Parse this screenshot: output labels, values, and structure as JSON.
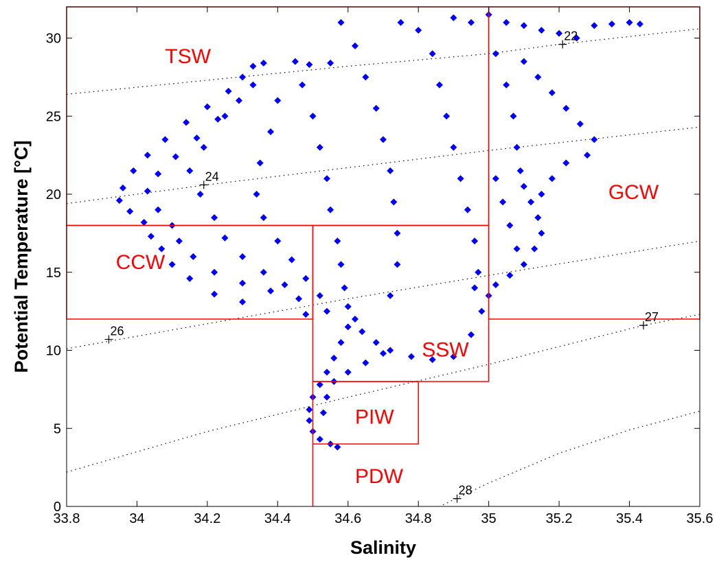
{
  "chart_data": {
    "type": "scatter",
    "title": "",
    "xlabel": "Salinity",
    "ylabel": "Potential Temperature [°C]",
    "xlim": [
      33.8,
      35.6
    ],
    "ylim": [
      0,
      32
    ],
    "xticks": [
      "33.8",
      "34",
      "34.2",
      "34.4",
      "34.6",
      "34.8",
      "35",
      "35.2",
      "35.4",
      "35.6"
    ],
    "yticks": [
      "0",
      "5",
      "10",
      "15",
      "20",
      "25",
      "30"
    ],
    "grid": false,
    "point_color": "#0000ff",
    "box_color": "#ff0000",
    "series": [
      {
        "points": [
          [
            34.33,
            28.2
          ],
          [
            34.3,
            27.5
          ],
          [
            34.26,
            26.6
          ],
          [
            34.2,
            25.6
          ],
          [
            34.14,
            24.6
          ],
          [
            34.08,
            23.5
          ],
          [
            34.03,
            22.5
          ],
          [
            33.99,
            21.5
          ],
          [
            33.96,
            20.4
          ],
          [
            33.95,
            19.6
          ],
          [
            33.98,
            18.9
          ],
          [
            34.02,
            18.2
          ],
          [
            34.04,
            17.3
          ],
          [
            34.07,
            16.5
          ],
          [
            34.1,
            15.5
          ],
          [
            34.15,
            14.6
          ],
          [
            34.22,
            13.6
          ],
          [
            34.3,
            13.1
          ],
          [
            34.36,
            28.4
          ],
          [
            34.33,
            27.0
          ],
          [
            34.29,
            26.0
          ],
          [
            34.23,
            24.8
          ],
          [
            34.17,
            23.6
          ],
          [
            34.11,
            22.4
          ],
          [
            34.06,
            21.3
          ],
          [
            34.03,
            20.2
          ],
          [
            34.06,
            19.0
          ],
          [
            34.1,
            18.0
          ],
          [
            34.12,
            17.0
          ],
          [
            34.16,
            16.0
          ],
          [
            34.22,
            15.0
          ],
          [
            34.3,
            14.3
          ],
          [
            34.38,
            13.8
          ],
          [
            34.25,
            25.0
          ],
          [
            34.19,
            23.0
          ],
          [
            34.15,
            21.5
          ],
          [
            34.18,
            20.0
          ],
          [
            34.22,
            18.5
          ],
          [
            34.25,
            17.2
          ],
          [
            34.3,
            16.0
          ],
          [
            34.36,
            15.0
          ],
          [
            34.42,
            14.2
          ],
          [
            34.46,
            13.3
          ],
          [
            34.48,
            12.3
          ],
          [
            34.4,
            26.0
          ],
          [
            34.38,
            24.0
          ],
          [
            34.35,
            22.0
          ],
          [
            34.34,
            20.0
          ],
          [
            34.36,
            18.5
          ],
          [
            34.4,
            17.0
          ],
          [
            34.44,
            15.8
          ],
          [
            34.48,
            14.6
          ],
          [
            34.52,
            13.5
          ],
          [
            34.54,
            12.5
          ],
          [
            34.45,
            28.5
          ],
          [
            34.47,
            27.0
          ],
          [
            34.5,
            25.0
          ],
          [
            34.52,
            23.0
          ],
          [
            34.54,
            21.0
          ],
          [
            34.55,
            19.0
          ],
          [
            34.57,
            17.0
          ],
          [
            34.58,
            15.5
          ],
          [
            34.59,
            14.0
          ],
          [
            34.6,
            12.8
          ],
          [
            34.49,
            28.3
          ],
          [
            34.55,
            28.4
          ],
          [
            34.58,
            31.0
          ],
          [
            34.62,
            29.5
          ],
          [
            34.65,
            27.5
          ],
          [
            34.68,
            25.5
          ],
          [
            34.7,
            23.5
          ],
          [
            34.72,
            21.5
          ],
          [
            34.73,
            19.5
          ],
          [
            34.74,
            17.5
          ],
          [
            34.74,
            15.5
          ],
          [
            34.72,
            13.5
          ],
          [
            34.75,
            31.0
          ],
          [
            34.8,
            30.5
          ],
          [
            34.84,
            29.0
          ],
          [
            34.86,
            27.0
          ],
          [
            34.88,
            25.0
          ],
          [
            34.9,
            23.0
          ],
          [
            34.92,
            21.0
          ],
          [
            34.94,
            19.0
          ],
          [
            34.96,
            17.0
          ],
          [
            34.97,
            15.0
          ],
          [
            34.96,
            14.0
          ],
          [
            34.9,
            31.3
          ],
          [
            34.95,
            31.0
          ],
          [
            35.0,
            31.5
          ],
          [
            35.05,
            31.0
          ],
          [
            35.1,
            30.8
          ],
          [
            35.15,
            30.5
          ],
          [
            35.2,
            30.3
          ],
          [
            35.25,
            30.0
          ],
          [
            35.3,
            30.8
          ],
          [
            35.35,
            30.9
          ],
          [
            35.4,
            31.0
          ],
          [
            35.43,
            30.9
          ],
          [
            35.02,
            29.0
          ],
          [
            35.05,
            27.0
          ],
          [
            35.07,
            25.0
          ],
          [
            35.08,
            23.0
          ],
          [
            35.09,
            21.5
          ],
          [
            35.1,
            20.5
          ],
          [
            35.12,
            19.5
          ],
          [
            35.14,
            18.5
          ],
          [
            35.15,
            17.5
          ],
          [
            35.13,
            16.5
          ],
          [
            35.1,
            15.5
          ],
          [
            35.06,
            14.8
          ],
          [
            35.02,
            14.2
          ],
          [
            35.1,
            28.5
          ],
          [
            35.14,
            27.5
          ],
          [
            35.18,
            26.5
          ],
          [
            35.22,
            25.5
          ],
          [
            35.26,
            24.5
          ],
          [
            35.3,
            23.5
          ],
          [
            35.28,
            22.5
          ],
          [
            35.22,
            22.0
          ],
          [
            35.18,
            21.0
          ],
          [
            35.15,
            20.0
          ],
          [
            35.02,
            21.0
          ],
          [
            35.04,
            19.5
          ],
          [
            35.06,
            18.0
          ],
          [
            35.08,
            16.5
          ],
          [
            34.62,
            12.0
          ],
          [
            34.64,
            11.2
          ],
          [
            34.68,
            10.5
          ],
          [
            34.72,
            10.0
          ],
          [
            34.78,
            9.6
          ],
          [
            34.84,
            9.4
          ],
          [
            34.9,
            9.6
          ],
          [
            34.95,
            11.0
          ],
          [
            34.98,
            12.5
          ],
          [
            35.0,
            13.5
          ],
          [
            34.6,
            11.5
          ],
          [
            34.58,
            10.5
          ],
          [
            34.56,
            9.5
          ],
          [
            34.54,
            8.6
          ],
          [
            34.52,
            7.8
          ],
          [
            34.5,
            7.0
          ],
          [
            34.49,
            6.2
          ],
          [
            34.49,
            5.5
          ],
          [
            34.5,
            4.8
          ],
          [
            34.52,
            4.3
          ],
          [
            34.55,
            4.0
          ],
          [
            34.57,
            3.8
          ],
          [
            34.53,
            6.0
          ],
          [
            34.54,
            7.0
          ],
          [
            34.56,
            8.0
          ],
          [
            34.6,
            8.6
          ],
          [
            34.65,
            9.2
          ],
          [
            34.7,
            9.8
          ]
        ]
      }
    ],
    "regions": [
      {
        "name": "TSW",
        "x": 34.08,
        "y": 28.4
      },
      {
        "name": "CCW",
        "x": 33.94,
        "y": 15.2
      },
      {
        "name": "GCW",
        "x": 35.34,
        "y": 19.7
      },
      {
        "name": "SSW",
        "x": 34.81,
        "y": 9.6
      },
      {
        "name": "PIW",
        "x": 34.62,
        "y": 5.3
      },
      {
        "name": "PDW",
        "x": 34.62,
        "y": 1.5
      }
    ],
    "boxes": [
      {
        "name": "CCW",
        "x": [
          33.8,
          34.5
        ],
        "y": [
          12,
          18
        ]
      },
      {
        "name": "TSW-upper",
        "x": [
          33.8,
          35.0
        ],
        "y": [
          18,
          32
        ]
      },
      {
        "name": "SSW",
        "x": [
          34.5,
          35.0
        ],
        "y": [
          8,
          18
        ]
      },
      {
        "name": "PIW",
        "x": [
          34.5,
          34.8
        ],
        "y": [
          4,
          8
        ]
      },
      {
        "name": "GCW-lower",
        "x": [
          35.0,
          35.6
        ],
        "y": [
          12,
          32
        ]
      },
      {
        "name": "PDW-divider",
        "x": [
          34.5,
          34.5
        ],
        "y": [
          0,
          4
        ]
      }
    ],
    "isopycnals": [
      {
        "label": "22",
        "label_at": [
          35.21,
          29.6
        ],
        "points": [
          [
            33.8,
            26.4
          ],
          [
            34.2,
            27.3
          ],
          [
            34.6,
            28.2
          ],
          [
            35.0,
            29.0
          ],
          [
            35.2,
            29.6
          ],
          [
            35.6,
            30.6
          ]
        ]
      },
      {
        "label": "24",
        "label_at": [
          34.19,
          20.6
        ],
        "points": [
          [
            33.8,
            19.4
          ],
          [
            34.2,
            20.6
          ],
          [
            34.6,
            21.7
          ],
          [
            35.0,
            22.8
          ],
          [
            35.6,
            24.3
          ]
        ]
      },
      {
        "label": "26",
        "label_at": [
          33.92,
          10.7
        ],
        "points": [
          [
            33.8,
            10.1
          ],
          [
            34.2,
            11.7
          ],
          [
            34.6,
            13.3
          ],
          [
            35.0,
            14.8
          ],
          [
            35.6,
            17.0
          ]
        ]
      },
      {
        "label": "27",
        "label_at": [
          35.44,
          11.6
        ],
        "points": [
          [
            33.8,
            2.2
          ],
          [
            34.2,
            4.8
          ],
          [
            34.6,
            7.0
          ],
          [
            35.0,
            9.1
          ],
          [
            35.44,
            11.6
          ],
          [
            35.6,
            12.3
          ]
        ]
      },
      {
        "label": "28",
        "label_at": [
          34.91,
          0.5
        ],
        "points": [
          [
            34.87,
            0.1
          ],
          [
            35.0,
            1.5
          ],
          [
            35.2,
            3.4
          ],
          [
            35.4,
            4.9
          ],
          [
            35.6,
            6.1
          ]
        ]
      }
    ]
  }
}
